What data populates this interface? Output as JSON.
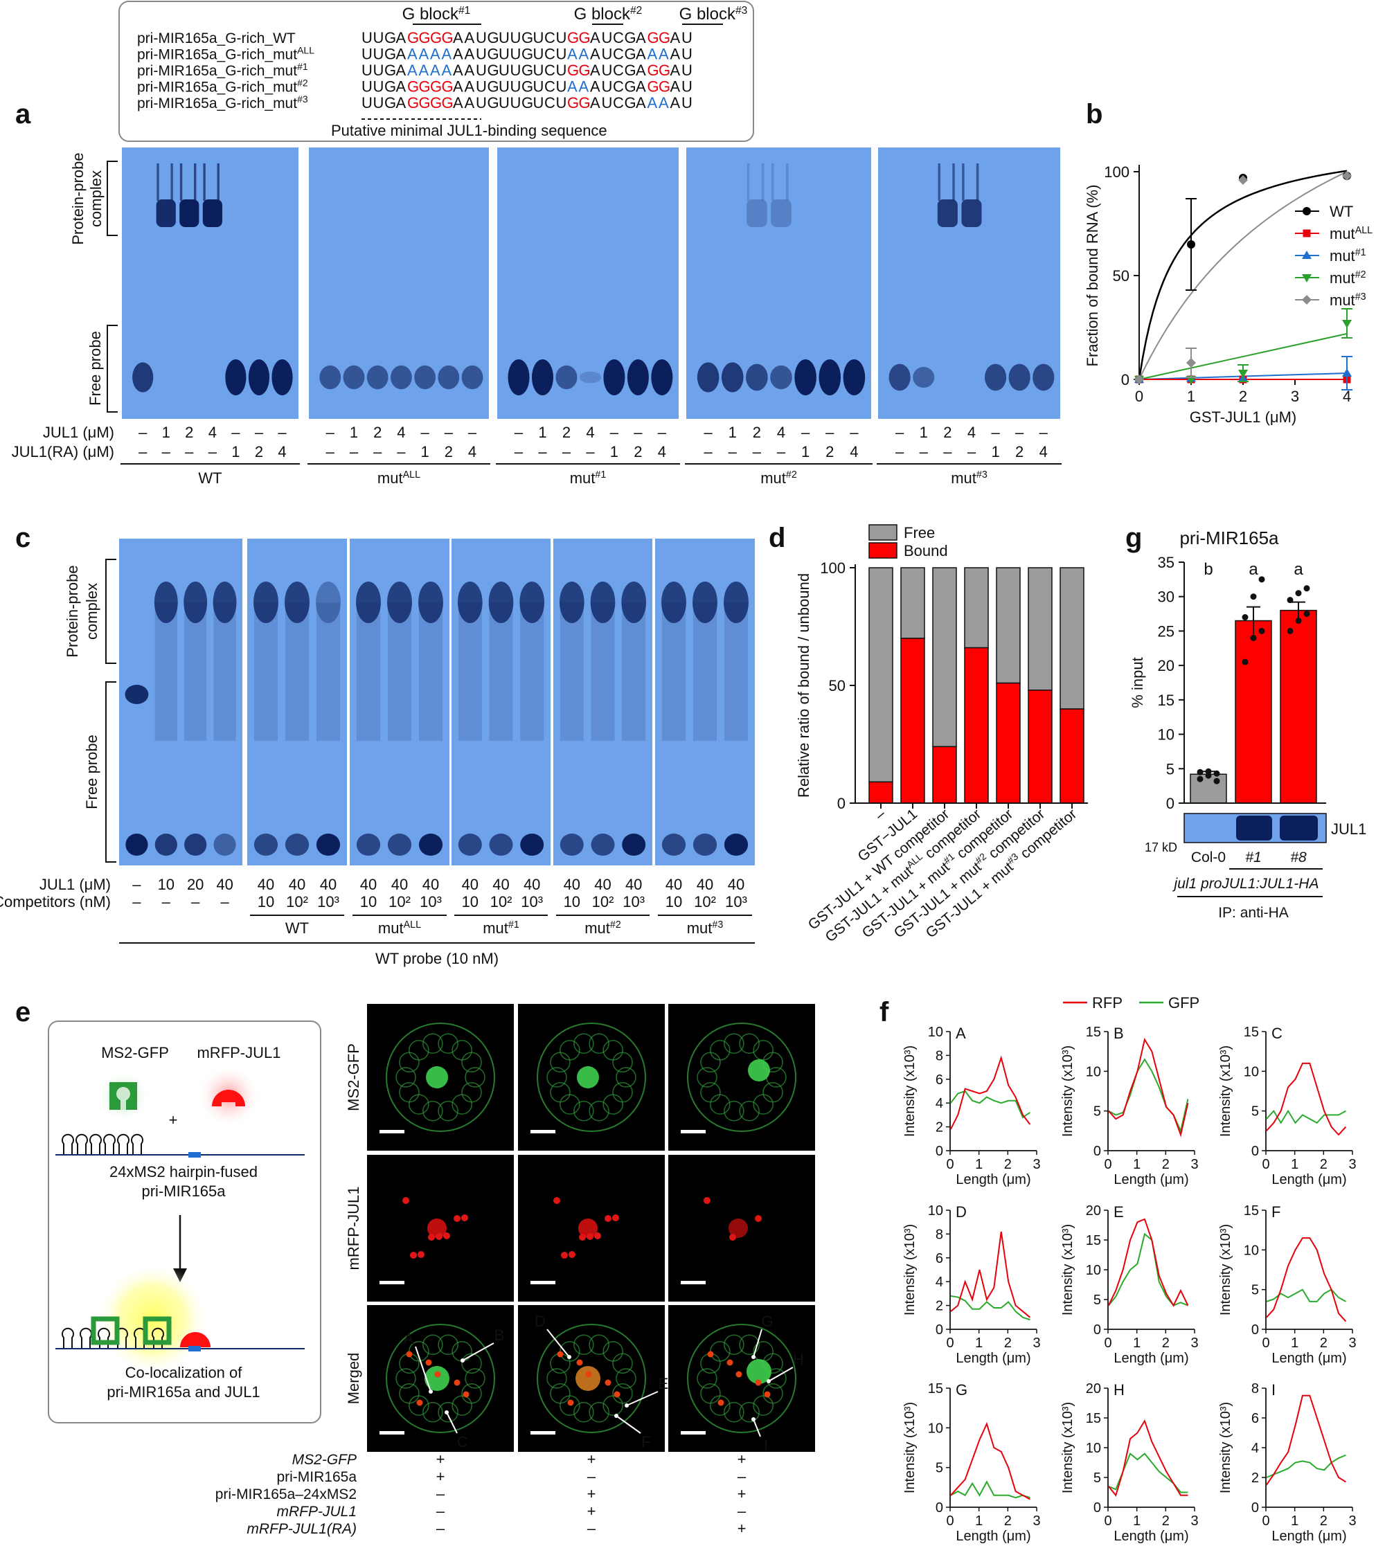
{
  "panels": {
    "a": "a",
    "b": "b",
    "c": "c",
    "d": "d",
    "e": "e",
    "f": "f",
    "g": "g"
  },
  "panel_a": {
    "gblocks": [
      "G block#1",
      "G block#2",
      "G block#3"
    ],
    "sequences": [
      {
        "name": "pri-MIR165a_G-rich_WT",
        "seq": "UUGAGGGGAAUGUUGUCUGGAUCGAGGAU"
      },
      {
        "name": "pri-MIR165a_G-rich_mutALL",
        "seq": "UUGAAAAAAAUGUUGUCUAAAUCGAAAAU"
      },
      {
        "name": "pri-MIR165a_G-rich_mut#1",
        "seq": "UUGAAAAAAAUGUUGUCUGGAUCGAGGAU"
      },
      {
        "name": "pri-MIR165a_G-rich_mut#2",
        "seq": "UUGAGGGGAAUGUUGUCUAAAUCGAGGAU"
      },
      {
        "name": "pri-MIR165a_G-rich_mut#3",
        "seq": "UUGAGGGGAAUGUUGUCUGGAUCGAAAAU"
      }
    ],
    "minimal_label": "Putative minimal JUL1-binding sequence",
    "complex_label": "Protein-probe complex",
    "free_label": "Free probe",
    "row1_label": "JUL1 (μM)",
    "row2_label": "JUL1(RA) (μM)",
    "row1": [
      "–",
      "1",
      "2",
      "4",
      "–",
      "–",
      "–"
    ],
    "row2": [
      "–",
      "–",
      "–",
      "–",
      "1",
      "2",
      "4"
    ],
    "gel_labels": [
      "WT",
      "mutALL",
      "mut#1",
      "mut#2",
      "mut#3"
    ]
  },
  "chart_data": [
    {
      "type": "line",
      "panel": "b",
      "xlabel": "GST-JUL1 (μM)",
      "ylabel": "Fraction of bound RNA (%)",
      "xlim": [
        0,
        4
      ],
      "ylim": [
        0,
        100
      ],
      "xticks": [
        0,
        1,
        2,
        3,
        4
      ],
      "yticks": [
        0,
        50,
        100
      ],
      "series": [
        {
          "name": "WT",
          "color": "#000000",
          "x": [
            0,
            1,
            2,
            4
          ],
          "y": [
            0,
            65,
            97,
            98
          ],
          "err": [
            0,
            22,
            0,
            0
          ]
        },
        {
          "name": "mutALL",
          "color": "#e8000b",
          "x": [
            0,
            1,
            2,
            4
          ],
          "y": [
            0,
            0,
            0,
            0
          ],
          "err": [
            0,
            0,
            0,
            0
          ]
        },
        {
          "name": "mut#1",
          "color": "#1f6fd0",
          "x": [
            0,
            1,
            2,
            4
          ],
          "y": [
            0,
            0.5,
            0.5,
            3
          ],
          "err": [
            0,
            0,
            0,
            8
          ]
        },
        {
          "name": "mut#2",
          "color": "#2ca02c",
          "x": [
            0,
            1,
            2,
            4
          ],
          "y": [
            0,
            0,
            3,
            27
          ],
          "err": [
            0,
            0,
            4,
            7
          ]
        },
        {
          "name": "mut#3",
          "color": "#8c8c8c",
          "x": [
            0,
            1,
            2,
            4
          ],
          "y": [
            0,
            8,
            96,
            98
          ],
          "err": [
            0,
            7,
            0,
            0
          ]
        }
      ]
    },
    {
      "type": "bar",
      "panel": "d",
      "ylabel": "Relative ratio of bound / unbound",
      "ylim": [
        0,
        100
      ],
      "yticks": [
        0,
        50,
        100
      ],
      "legend": [
        "Free",
        "Bound"
      ],
      "categories": [
        "–",
        "GST−JUL1",
        "GST-JUL1 + WT competitor",
        "GST-JUL1 + mutALL competitor",
        "GST-JUL1 + mut#1 competitor",
        "GST-JUL1 + mut#2 competitor",
        "GST-JUL1 + mut#3 competitor"
      ],
      "bound": [
        9,
        70,
        24,
        66,
        51,
        48,
        40
      ]
    },
    {
      "type": "bar",
      "panel": "g",
      "title": "pri-MIR165a",
      "ylabel": "% input",
      "ylim": [
        0,
        35
      ],
      "yticks": [
        0,
        5,
        10,
        15,
        20,
        25,
        30,
        35
      ],
      "categories": [
        "Col-0",
        "#1",
        "#8"
      ],
      "values": [
        4.2,
        26.5,
        28
      ],
      "err": [
        0.4,
        2,
        1.2
      ],
      "letters": [
        "b",
        "a",
        "a"
      ],
      "points": [
        [
          3.5,
          4.0,
          4.3,
          4.5,
          4.6,
          3.2
        ],
        [
          20.5,
          24,
          25,
          27,
          30,
          32.5
        ],
        [
          25,
          26.5,
          27.5,
          29.5,
          30.5,
          31.2
        ]
      ],
      "blot_label": "JUL1",
      "kd_label": "17 kD",
      "genotype": "jul1 proJUL1:JUL1-HA",
      "ip_label": "IP: anti-HA"
    },
    {
      "type": "line",
      "panel": "f",
      "xlabel": "Length (μm)",
      "ylabel": "Intensity (x10³)",
      "legend": [
        "RFP",
        "GFP"
      ],
      "plots": [
        {
          "name": "A",
          "ymax": 10,
          "yticks": [
            0,
            2,
            4,
            6,
            8,
            10
          ],
          "xmax": 3,
          "rfp": [
            1.8,
            3,
            5.2,
            5,
            4.8,
            5,
            6,
            7.8,
            5.5,
            4.5,
            3,
            2.2
          ],
          "gfp": [
            4,
            4.8,
            5,
            4.2,
            4,
            4.5,
            4.2,
            4,
            4.2,
            4.2,
            2.8,
            3.2
          ]
        },
        {
          "name": "B",
          "ymax": 15,
          "yticks": [
            0,
            5,
            10,
            15
          ],
          "xmax": 3,
          "rfp": [
            5,
            4,
            4.5,
            7.5,
            10,
            14,
            12.5,
            9,
            5.5,
            4.5,
            2,
            6
          ],
          "gfp": [
            5,
            4.5,
            4.8,
            7,
            10,
            11.5,
            10,
            8,
            5.5,
            4.5,
            2.5,
            6.5
          ]
        },
        {
          "name": "C",
          "ymax": 15,
          "yticks": [
            0,
            5,
            10,
            15
          ],
          "xmax": 3,
          "rfp": [
            2.5,
            3.5,
            5,
            8,
            9,
            11,
            11,
            8,
            5,
            3,
            2,
            3
          ],
          "gfp": [
            4,
            5,
            3.5,
            5,
            3.5,
            4.5,
            4,
            3.5,
            4.5,
            4.5,
            4.5,
            5
          ]
        },
        {
          "name": "D",
          "ymax": 10,
          "yticks": [
            0,
            2,
            4,
            6,
            8,
            10
          ],
          "xmax": 3,
          "rfp": [
            1.5,
            2,
            4,
            2.5,
            5,
            2.5,
            3.5,
            8.2,
            4,
            2,
            1.5,
            1
          ],
          "gfp": [
            2.8,
            2.7,
            2.4,
            1.7,
            1.7,
            2.3,
            1.8,
            1.8,
            2.3,
            1.5,
            1,
            0.8
          ]
        },
        {
          "name": "E",
          "ymax": 20,
          "yticks": [
            0,
            5,
            10,
            15,
            20
          ],
          "xmax": 3,
          "rfp": [
            4,
            6.5,
            10,
            15,
            18,
            18.5,
            15,
            9,
            6,
            4,
            6.5,
            4
          ],
          "gfp": [
            4,
            5.5,
            8,
            10,
            11,
            16,
            15,
            8,
            5.5,
            4,
            4.5,
            4
          ]
        },
        {
          "name": "F",
          "ymax": 15,
          "yticks": [
            0,
            5,
            10,
            15
          ],
          "xmax": 3,
          "rfp": [
            1.5,
            2.5,
            5,
            8,
            10,
            11.5,
            11.5,
            10,
            7,
            5,
            2,
            1
          ],
          "gfp": [
            3.5,
            3.8,
            4.5,
            4,
            4.5,
            5,
            3.5,
            3.5,
            4.5,
            5,
            4,
            3.5
          ]
        },
        {
          "name": "G",
          "ymax": 15,
          "yticks": [
            0,
            5,
            10,
            15
          ],
          "xmax": 3,
          "rfp": [
            1.5,
            2.5,
            3.5,
            6,
            8.5,
            10.5,
            7.5,
            7,
            5,
            2,
            1.5,
            1
          ],
          "gfp": [
            1.5,
            2,
            1.5,
            3,
            1.5,
            3.2,
            1.5,
            1.5,
            1.5,
            1.2,
            1.5,
            1.2
          ]
        },
        {
          "name": "H",
          "ymax": 20,
          "yticks": [
            0,
            5,
            10,
            15,
            20
          ],
          "xmax": 3,
          "rfp": [
            3.5,
            2,
            6,
            11.5,
            12.5,
            14.5,
            11,
            8.5,
            6,
            4,
            2,
            2
          ],
          "gfp": [
            3.5,
            3,
            6,
            9,
            8,
            9,
            7.5,
            6,
            5,
            4,
            2.5,
            2.5
          ]
        },
        {
          "name": "I",
          "ymax": 8,
          "yticks": [
            0,
            2,
            4,
            6,
            8
          ],
          "xmax": 3,
          "rfp": [
            1.5,
            2.2,
            3,
            3.7,
            5.5,
            7.5,
            7.5,
            6,
            4.5,
            3,
            2,
            1.7
          ],
          "gfp": [
            2,
            2.2,
            2.4,
            2.6,
            3,
            3.1,
            3,
            2.6,
            2.5,
            3,
            3.3,
            3.5
          ]
        }
      ]
    }
  ],
  "panel_c": {
    "complex_label": "Protein-probe complex",
    "free_label": "Free probe",
    "row1_label": "JUL1 (μM)",
    "row2_label": "Competitors (nM)",
    "first_row1": [
      "–",
      "10",
      "20",
      "40"
    ],
    "first_row2": [
      "–",
      "–",
      "–",
      "–"
    ],
    "comp_row1": [
      "40",
      "40",
      "40"
    ],
    "comp_row2": [
      "10",
      "10²",
      "10³"
    ],
    "groups": [
      "WT",
      "mutALL",
      "mut#1",
      "mut#2",
      "mut#3"
    ],
    "probe_label": "WT probe  (10 nM)"
  },
  "panel_e": {
    "legend_gfp": "MS2-GFP",
    "legend_rfp": "mRFP-JUL1",
    "plus": "+",
    "construct_line1": "24xMS2 hairpin-fused",
    "construct_line2": "pri-MIR165a",
    "caption_line1": "Co-localization of",
    "caption_line2": "pri-MIR165a and JUL1",
    "row_labels": [
      "MS2-GFP",
      "mRFP-JUL1",
      "Merged"
    ],
    "points": [
      "A",
      "B",
      "C",
      "D",
      "E",
      "F",
      "G",
      "H",
      "I"
    ],
    "table_rows": [
      {
        "label": "MS2-GFP",
        "vals": [
          "+",
          "+",
          "+"
        ]
      },
      {
        "label": "pri-MIR165a",
        "vals": [
          "+",
          "–",
          "–"
        ]
      },
      {
        "label": "pri-MIR165a–24xMS2",
        "vals": [
          "–",
          "+",
          "+"
        ]
      },
      {
        "label": "mRFP-JUL1",
        "vals": [
          "–",
          "+",
          "–"
        ]
      },
      {
        "label": "mRFP-JUL1(RA)",
        "vals": [
          "–",
          "–",
          "+"
        ]
      }
    ]
  }
}
